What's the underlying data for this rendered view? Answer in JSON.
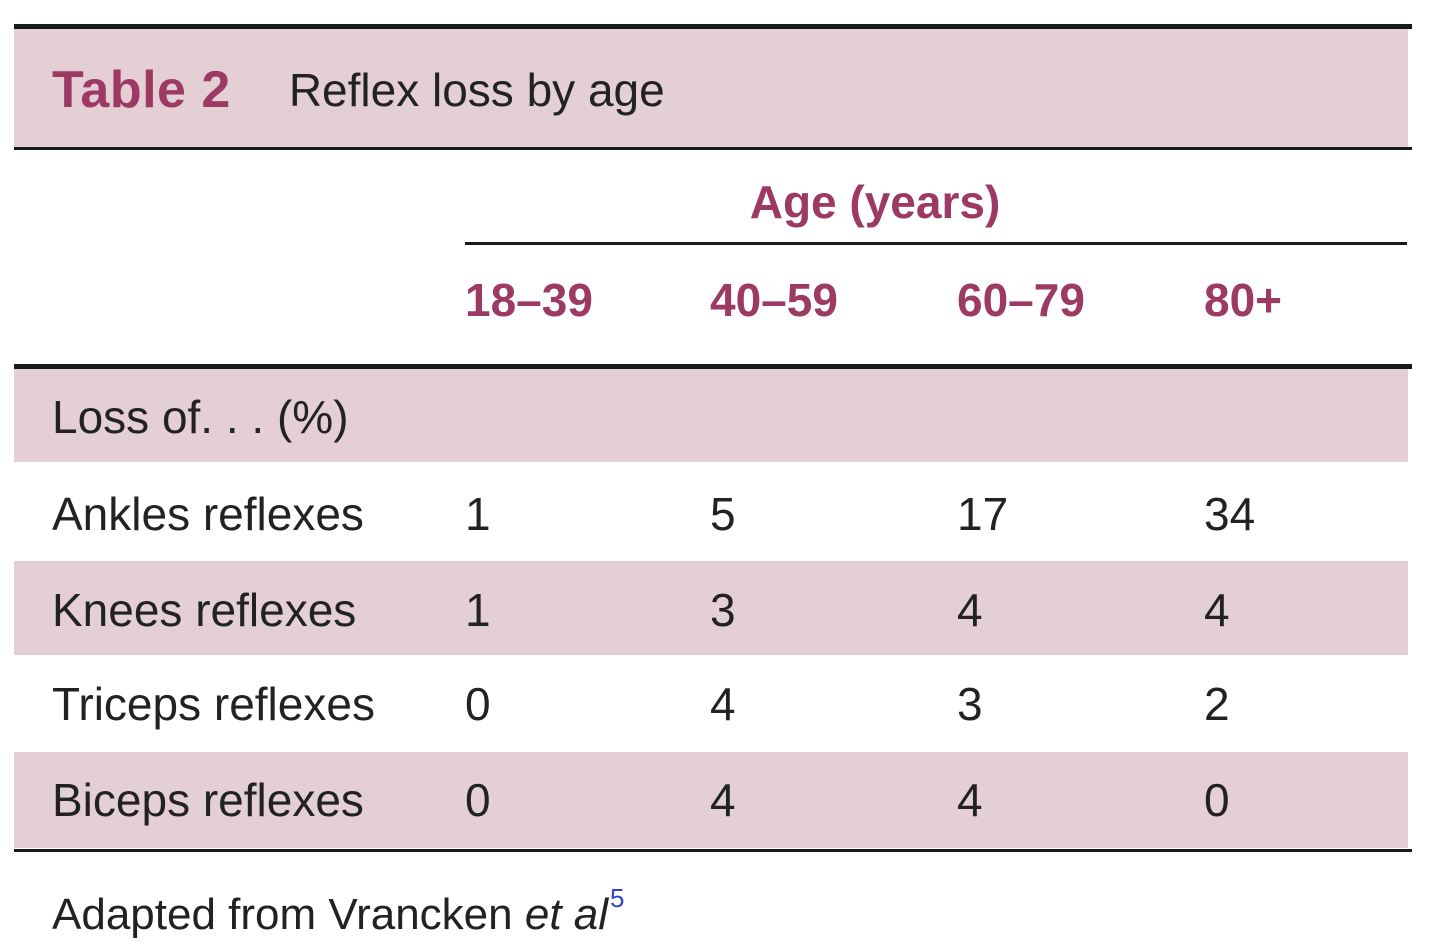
{
  "table": {
    "label": "Table 2",
    "caption": "Reflex loss by age",
    "group_header": "Age (years)",
    "columns": [
      "18–39",
      "40–59",
      "60–79",
      "80+"
    ],
    "section_label": "Loss of. . . (%)",
    "rows": [
      {
        "label": "Ankles reflexes",
        "values": [
          "1",
          "5",
          "17",
          "34"
        ]
      },
      {
        "label": "Knees reflexes",
        "values": [
          "1",
          "3",
          "4",
          "4"
        ]
      },
      {
        "label": "Triceps reflexes",
        "values": [
          "0",
          "4",
          "3",
          "2"
        ]
      },
      {
        "label": "Biceps reflexes",
        "values": [
          "0",
          "4",
          "4",
          "0"
        ]
      }
    ],
    "footnote": {
      "text": "Adapted from Vrancken ",
      "italic": "et al",
      "ref": "5"
    }
  },
  "colors": {
    "band": "#e4d0d4",
    "accent": "#9c3a64",
    "rule": "#1a1a1a",
    "ref_link": "#3344cc"
  }
}
